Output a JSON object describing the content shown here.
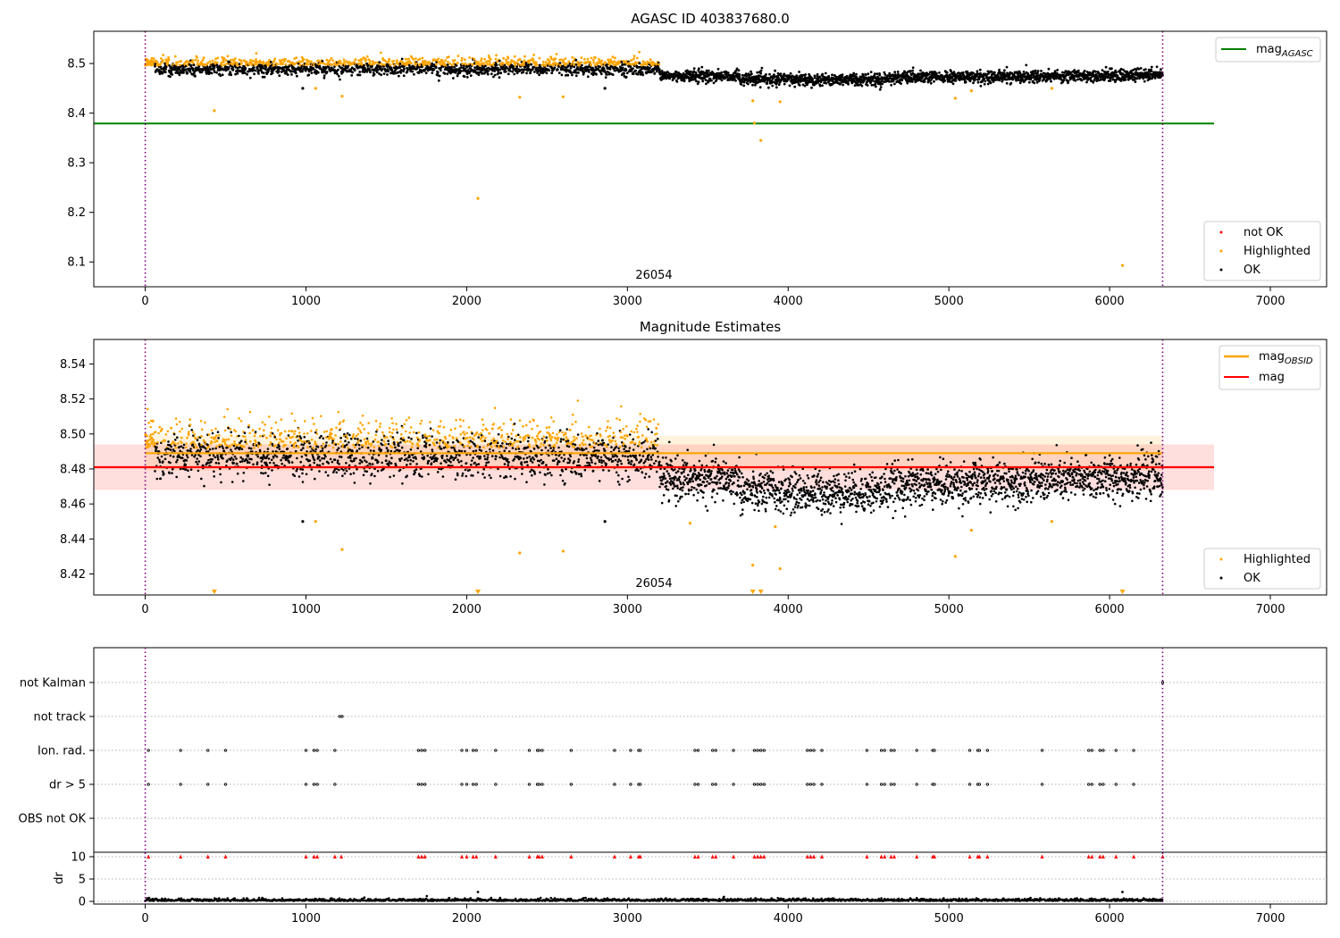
{
  "chart_data": [
    {
      "type": "scatter",
      "title": "AGASC ID 403837680.0",
      "xlabel": "",
      "ylabel": "",
      "xlim": [
        -320,
        7350
      ],
      "ylim": [
        8.05,
        8.565
      ],
      "xticks": [
        0,
        1000,
        2000,
        3000,
        4000,
        5000,
        6000,
        7000
      ],
      "yticks": [
        8.1,
        8.2,
        8.3,
        8.4,
        8.5
      ],
      "ytick_labels": [
        "8.1",
        "8.2",
        "8.3",
        "8.4",
        "8.5"
      ],
      "obsid_label": "26054",
      "obsid_boundaries": [
        0,
        6330
      ],
      "legend_upper": {
        "location": "upper right",
        "entries": [
          {
            "kind": "line",
            "color": "#008000",
            "base": "mag",
            "sub": "AGASC"
          }
        ]
      },
      "legend_lower": {
        "location": "lower right",
        "entries": [
          {
            "label": "not OK",
            "color": "#ff0000"
          },
          {
            "label": "Highlighted",
            "color": "#ffa500"
          },
          {
            "label": "OK",
            "color": "#000000"
          }
        ]
      },
      "lines": [
        {
          "name": "mag_AGASC",
          "y": 8.379,
          "x": [
            -320,
            6650
          ],
          "color": "#008000"
        }
      ],
      "series": [
        {
          "name": "Highlighted",
          "color": "#ffa500",
          "points": [
            [
              430,
              8.405
            ],
            [
              1060,
              8.45
            ],
            [
              1225,
              8.434
            ],
            [
              2070,
              8.228
            ],
            [
              2330,
              8.432
            ],
            [
              2600,
              8.433
            ],
            [
              3780,
              8.425
            ],
            [
              3790,
              8.38
            ],
            [
              3830,
              8.345
            ],
            [
              3950,
              8.423
            ],
            [
              5040,
              8.43
            ],
            [
              5140,
              8.445
            ],
            [
              5640,
              8.45
            ],
            [
              6080,
              8.093
            ]
          ]
        },
        {
          "name": "OK",
          "color": "#000000",
          "points": [
            [
              980,
              8.45
            ],
            [
              2860,
              8.45
            ]
          ]
        }
      ]
    },
    {
      "type": "scatter",
      "title": "Magnitude Estimates",
      "xlabel": "",
      "ylabel": "",
      "xlim": [
        -320,
        7350
      ],
      "ylim": [
        8.408,
        8.554
      ],
      "xticks": [
        0,
        1000,
        2000,
        3000,
        4000,
        5000,
        6000,
        7000
      ],
      "yticks": [
        8.42,
        8.44,
        8.46,
        8.48,
        8.5,
        8.52,
        8.54
      ],
      "ytick_labels": [
        "8.42",
        "8.44",
        "8.46",
        "8.48",
        "8.50",
        "8.52",
        "8.54"
      ],
      "obsid_label": "26054",
      "obsid_boundaries": [
        0,
        6330
      ],
      "legend_upper": {
        "location": "upper right",
        "entries": [
          {
            "kind": "line",
            "color": "#ffa500",
            "base": "mag",
            "sub": "OBSID"
          },
          {
            "kind": "line",
            "color": "#ff0000",
            "label": "mag"
          }
        ]
      },
      "legend_lower": {
        "location": "lower right",
        "entries": [
          {
            "label": "Highlighted",
            "color": "#ffa500"
          },
          {
            "label": "OK",
            "color": "#000000"
          }
        ]
      },
      "lines": [
        {
          "name": "mag_OBSID",
          "y": 8.489,
          "x": [
            0,
            6330
          ],
          "color": "#ffa500"
        },
        {
          "name": "mag",
          "y": 8.481,
          "x": [
            -320,
            6650
          ],
          "color": "#ff0000"
        }
      ],
      "bands": [
        {
          "name": "mag_OBSID band",
          "y": [
            8.479,
            8.499
          ],
          "x": [
            0,
            6330
          ],
          "color": "#ffa500"
        },
        {
          "name": "mag band",
          "y": [
            8.468,
            8.494
          ],
          "x": [
            -320,
            6650
          ],
          "color": "#ff0000"
        }
      ],
      "series": [
        {
          "name": "Highlighted",
          "color": "#ffa500",
          "points": [
            [
              1060,
              8.45
            ],
            [
              1225,
              8.434
            ],
            [
              2330,
              8.432
            ],
            [
              2600,
              8.433
            ],
            [
              3780,
              8.425
            ],
            [
              3950,
              8.423
            ],
            [
              3390,
              8.449
            ],
            [
              3920,
              8.447
            ],
            [
              5040,
              8.43
            ],
            [
              5140,
              8.445
            ],
            [
              5640,
              8.45
            ]
          ]
        },
        {
          "name": "OK",
          "color": "#000000",
          "points": [
            [
              980,
              8.45
            ],
            [
              2860,
              8.45
            ]
          ]
        }
      ],
      "below_range_markers": {
        "color": "#ffa500",
        "x": [
          430,
          2070,
          3780,
          3830,
          6080
        ]
      }
    },
    {
      "type": "scatter",
      "title": "",
      "xlabel": "",
      "ylabel": "dr",
      "xlim": [
        -320,
        7350
      ],
      "xticks": [
        0,
        1000,
        2000,
        3000,
        4000,
        5000,
        6000,
        7000
      ],
      "flag_categories": [
        "not Kalman",
        "not track",
        "Ion. rad.",
        "dr > 5",
        "OBS not OK"
      ],
      "flags": {
        "not Kalman": [
          6330
        ],
        "not track": [
          1210,
          1225
        ],
        "Ion. rad.": [
          20,
          220,
          390,
          500,
          1000,
          1050,
          1070,
          1180,
          1700,
          1720,
          1740,
          1970,
          2000,
          2040,
          2060,
          2180,
          2390,
          2440,
          2450,
          2470,
          2650,
          2920,
          3020,
          3070,
          3080,
          3420,
          3440,
          3530,
          3550,
          3660,
          3790,
          3810,
          3830,
          3850,
          4120,
          4140,
          4160,
          4210,
          4490,
          4580,
          4600,
          4640,
          4660,
          4800,
          4900,
          4910,
          5130,
          5180,
          5190,
          5240,
          5580,
          5870,
          5890,
          5940,
          5960,
          6040,
          6150
        ],
        "dr > 5": [
          20,
          220,
          390,
          500,
          1000,
          1050,
          1070,
          1180,
          1700,
          1720,
          1740,
          1970,
          2000,
          2040,
          2060,
          2180,
          2390,
          2440,
          2450,
          2470,
          2650,
          2920,
          3020,
          3070,
          3080,
          3420,
          3440,
          3530,
          3550,
          3660,
          3790,
          3810,
          3830,
          3850,
          4120,
          4140,
          4160,
          4210,
          4490,
          4580,
          4600,
          4640,
          4660,
          4800,
          4900,
          4910,
          5130,
          5180,
          5190,
          5240,
          5580,
          5870,
          5890,
          5940,
          5960,
          6040,
          6150
        ],
        "OBS not OK": []
      },
      "dr_ylim": [
        -0.6,
        11
      ],
      "dr_yticks": [
        0,
        5,
        10
      ],
      "dr_clip_markers": {
        "y": 10,
        "color": "#ff0000",
        "x": [
          20,
          220,
          390,
          500,
          1000,
          1050,
          1070,
          1180,
          1220,
          1700,
          1720,
          1740,
          1970,
          2000,
          2040,
          2060,
          2180,
          2390,
          2440,
          2450,
          2470,
          2650,
          2920,
          3020,
          3070,
          3080,
          3420,
          3440,
          3530,
          3550,
          3660,
          3790,
          3810,
          3830,
          3850,
          4120,
          4140,
          4160,
          4210,
          4490,
          4580,
          4600,
          4640,
          4660,
          4800,
          4900,
          4910,
          5130,
          5180,
          5190,
          5240,
          5580,
          5870,
          5890,
          5940,
          5960,
          6040,
          6150,
          6330
        ]
      },
      "dr_outliers": [
        [
          2070,
          2.1
        ],
        [
          3600,
          1.0
        ],
        [
          6080,
          2.1
        ]
      ],
      "dr_series_description": "dr values mostly between 0 and 0.8",
      "obsid_boundaries": [
        0,
        6330
      ]
    }
  ]
}
